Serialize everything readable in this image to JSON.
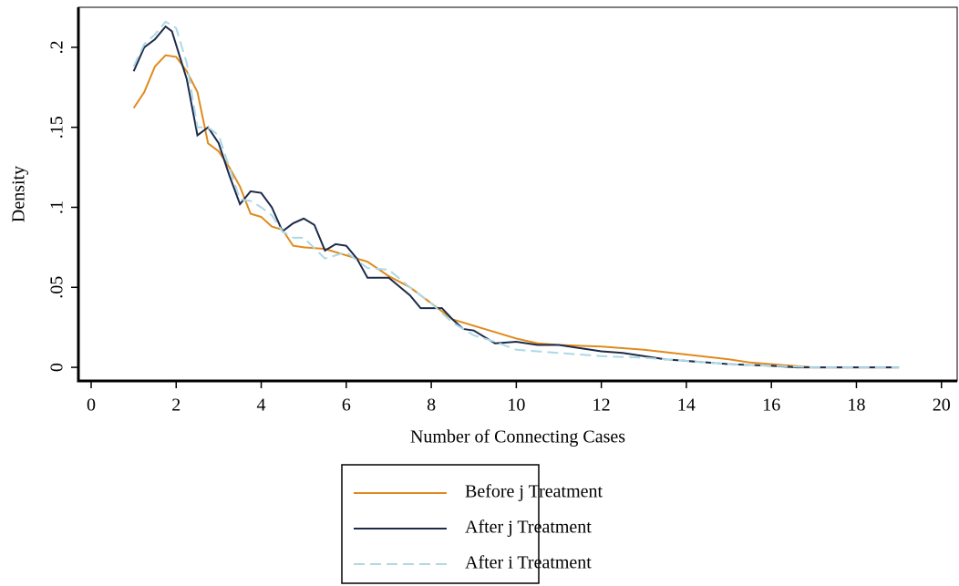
{
  "chart_data": {
    "type": "line",
    "x_label": "Number of Connecting Cases",
    "y_label": "Density",
    "xlim": [
      -0.3,
      20.37
    ],
    "ylim": [
      -0.0085,
      0.225
    ],
    "xticks": [
      0,
      2,
      4,
      6,
      8,
      10,
      12,
      14,
      16,
      18,
      20
    ],
    "yticks": [
      0,
      {
        "value": 0.05,
        "label": ".05"
      },
      {
        "value": 0.1,
        "label": ".1"
      },
      {
        "value": 0.15,
        "label": ".15"
      },
      {
        "value": 0.2,
        "label": ".2"
      }
    ],
    "legend": "bottom",
    "series": [
      {
        "name": "Before j Treatment",
        "color": "#e08a1e",
        "dash": false,
        "x": [
          1,
          1.25,
          1.5,
          1.75,
          2,
          2.25,
          2.5,
          2.75,
          3,
          3.25,
          3.5,
          3.75,
          4,
          4.25,
          4.5,
          4.75,
          5,
          5.5,
          6,
          6.5,
          7,
          7.5,
          8,
          8.5,
          9,
          9.5,
          10,
          10.5,
          11,
          12,
          13,
          14,
          15,
          15.5,
          16,
          16.5,
          17,
          18,
          19
        ],
        "values": [
          0.162,
          0.172,
          0.188,
          0.195,
          0.194,
          0.185,
          0.172,
          0.14,
          0.135,
          0.125,
          0.113,
          0.096,
          0.094,
          0.088,
          0.086,
          0.076,
          0.075,
          0.074,
          0.07,
          0.066,
          0.057,
          0.05,
          0.04,
          0.03,
          0.026,
          0.022,
          0.018,
          0.015,
          0.014,
          0.013,
          0.011,
          0.008,
          0.005,
          0.003,
          0.002,
          0.001,
          0,
          0,
          0
        ]
      },
      {
        "name": "After j Treatment",
        "color": "#1c2b4a",
        "dash": false,
        "x": [
          1,
          1.25,
          1.5,
          1.75,
          1.9,
          2.25,
          2.5,
          2.75,
          3,
          3.25,
          3.5,
          3.75,
          4,
          4.25,
          4.5,
          4.75,
          5,
          5.25,
          5.5,
          5.75,
          6,
          6.25,
          6.5,
          7,
          7.5,
          7.75,
          8.25,
          8.5,
          8.75,
          9,
          9.5,
          10,
          10.5,
          11,
          11.5,
          12,
          12.5,
          13,
          13.5,
          14,
          14.5,
          15,
          16,
          16.6,
          17,
          19
        ],
        "values": [
          0.185,
          0.2,
          0.205,
          0.213,
          0.21,
          0.18,
          0.145,
          0.15,
          0.14,
          0.12,
          0.102,
          0.11,
          0.109,
          0.1,
          0.085,
          0.09,
          0.093,
          0.089,
          0.073,
          0.077,
          0.076,
          0.068,
          0.056,
          0.056,
          0.045,
          0.037,
          0.037,
          0.03,
          0.024,
          0.023,
          0.015,
          0.016,
          0.014,
          0.014,
          0.012,
          0.01,
          0.009,
          0.007,
          0.005,
          0.004,
          0.003,
          0.002,
          0.001,
          0,
          0,
          0
        ]
      },
      {
        "name": "After i Treatment",
        "color": "#add8e6",
        "dash": true,
        "x": [
          1,
          1.25,
          1.5,
          1.75,
          2,
          2.25,
          2.5,
          2.75,
          3,
          3.25,
          3.5,
          3.75,
          4,
          4.25,
          4.5,
          4.75,
          5,
          5.5,
          6,
          6.5,
          7,
          7.5,
          8,
          8.5,
          9,
          9.5,
          10,
          10.5,
          11,
          12,
          13,
          14,
          15,
          16,
          17,
          19
        ],
        "values": [
          0.188,
          0.202,
          0.208,
          0.216,
          0.212,
          0.19,
          0.15,
          0.15,
          0.145,
          0.125,
          0.105,
          0.104,
          0.1,
          0.095,
          0.085,
          0.081,
          0.081,
          0.068,
          0.072,
          0.062,
          0.061,
          0.05,
          0.04,
          0.028,
          0.02,
          0.016,
          0.011,
          0.01,
          0.009,
          0.007,
          0.006,
          0.004,
          0.002,
          0.001,
          0,
          0
        ]
      }
    ]
  }
}
